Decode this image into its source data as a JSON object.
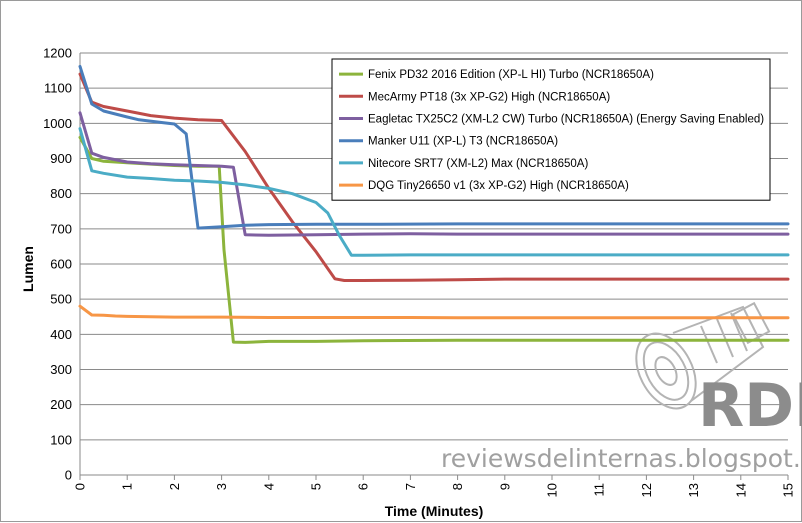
{
  "chart_data": {
    "type": "line",
    "title": "",
    "xlabel": "Time (Minutes)",
    "ylabel": "Lumen",
    "xlim": [
      0,
      15
    ],
    "ylim": [
      0,
      1200
    ],
    "x_ticks": [
      0,
      1,
      2,
      3,
      4,
      5,
      6,
      7,
      8,
      9,
      10,
      11,
      12,
      13,
      14,
      15
    ],
    "y_ticks": [
      0,
      100,
      200,
      300,
      400,
      500,
      600,
      700,
      800,
      900,
      1000,
      1100,
      1200
    ],
    "grid": "horizontal",
    "legend_position": "top-right",
    "series": [
      {
        "name": "Fenix PD32 2016 Edition (XP-L HI) Turbo (NCR18650A)",
        "color": "#8cb43c",
        "points": [
          [
            0,
            960
          ],
          [
            0.25,
            900
          ],
          [
            0.5,
            892
          ],
          [
            1,
            888
          ],
          [
            2,
            880
          ],
          [
            2.5,
            878
          ],
          [
            2.95,
            878
          ],
          [
            3.05,
            640
          ],
          [
            3.25,
            378
          ],
          [
            3.5,
            377
          ],
          [
            4,
            380
          ],
          [
            5,
            380
          ],
          [
            6,
            382
          ],
          [
            8,
            383
          ],
          [
            10,
            383
          ],
          [
            12,
            383
          ],
          [
            15,
            383
          ]
        ]
      },
      {
        "name": "MecArmy PT18 (3x XP-G2) High (NCR18650A)",
        "color": "#be4b48",
        "points": [
          [
            0,
            1140
          ],
          [
            0.25,
            1060
          ],
          [
            0.5,
            1048
          ],
          [
            1,
            1035
          ],
          [
            1.5,
            1022
          ],
          [
            2,
            1015
          ],
          [
            2.5,
            1010
          ],
          [
            3,
            1008
          ],
          [
            3.5,
            920
          ],
          [
            4,
            815
          ],
          [
            4.5,
            720
          ],
          [
            5,
            635
          ],
          [
            5.4,
            558
          ],
          [
            5.6,
            553
          ],
          [
            6,
            553
          ],
          [
            7,
            554
          ],
          [
            8,
            555
          ],
          [
            9,
            557
          ],
          [
            10,
            557
          ],
          [
            15,
            557
          ]
        ]
      },
      {
        "name": "Eagletac TX25C2 (XM-L2 CW) Turbo (NCR18650A) (Energy Saving Enabled)",
        "color": "#7e5fa0",
        "points": [
          [
            0,
            1030
          ],
          [
            0.25,
            915
          ],
          [
            0.5,
            903
          ],
          [
            1,
            890
          ],
          [
            1.5,
            885
          ],
          [
            2,
            882
          ],
          [
            2.5,
            880
          ],
          [
            3,
            878
          ],
          [
            3.25,
            875
          ],
          [
            3.5,
            683
          ],
          [
            4,
            682
          ],
          [
            5,
            683
          ],
          [
            6,
            685
          ],
          [
            7,
            686
          ],
          [
            8,
            685
          ],
          [
            10,
            685
          ],
          [
            15,
            685
          ]
        ]
      },
      {
        "name": "Manker U11 (XP-L) T3 (NCR18650A)",
        "color": "#4a7ebb",
        "points": [
          [
            0,
            1162
          ],
          [
            0.25,
            1055
          ],
          [
            0.5,
            1035
          ],
          [
            1,
            1018
          ],
          [
            1.25,
            1010
          ],
          [
            1.75,
            1002
          ],
          [
            2,
            998
          ],
          [
            2.25,
            970
          ],
          [
            2.5,
            702
          ],
          [
            3,
            706
          ],
          [
            3.5,
            710
          ],
          [
            4,
            712
          ],
          [
            5,
            713
          ],
          [
            6,
            713
          ],
          [
            8,
            714
          ],
          [
            10,
            714
          ],
          [
            15,
            714
          ]
        ]
      },
      {
        "name": "Nitecore SRT7 (XM-L2) Max (NCR18650A)",
        "color": "#4bacc6",
        "points": [
          [
            0,
            985
          ],
          [
            0.25,
            865
          ],
          [
            0.5,
            858
          ],
          [
            1,
            847
          ],
          [
            1.5,
            843
          ],
          [
            2,
            838
          ],
          [
            2.5,
            836
          ],
          [
            3,
            832
          ],
          [
            3.5,
            825
          ],
          [
            4,
            815
          ],
          [
            4.5,
            800
          ],
          [
            5,
            775
          ],
          [
            5.25,
            745
          ],
          [
            5.5,
            680
          ],
          [
            5.75,
            625
          ],
          [
            6,
            625
          ],
          [
            7,
            626
          ],
          [
            8,
            626
          ],
          [
            10,
            626
          ],
          [
            15,
            626
          ]
        ]
      },
      {
        "name": "DQG Tiny26650 v1 (3x XP-G2) High (NCR18650A)",
        "color": "#f79646",
        "points": [
          [
            0,
            480
          ],
          [
            0.25,
            455
          ],
          [
            0.5,
            454
          ],
          [
            0.75,
            452
          ],
          [
            1,
            451
          ],
          [
            1.5,
            450
          ],
          [
            2,
            449
          ],
          [
            3,
            449
          ],
          [
            4,
            448
          ],
          [
            5,
            448
          ],
          [
            6,
            448
          ],
          [
            7,
            448
          ],
          [
            8,
            447
          ],
          [
            10,
            447
          ],
          [
            12,
            447
          ],
          [
            15,
            447
          ]
        ]
      }
    ]
  },
  "watermark": {
    "site": "reviewsdelinternas.blogspot.com",
    "logo": "RDL"
  }
}
